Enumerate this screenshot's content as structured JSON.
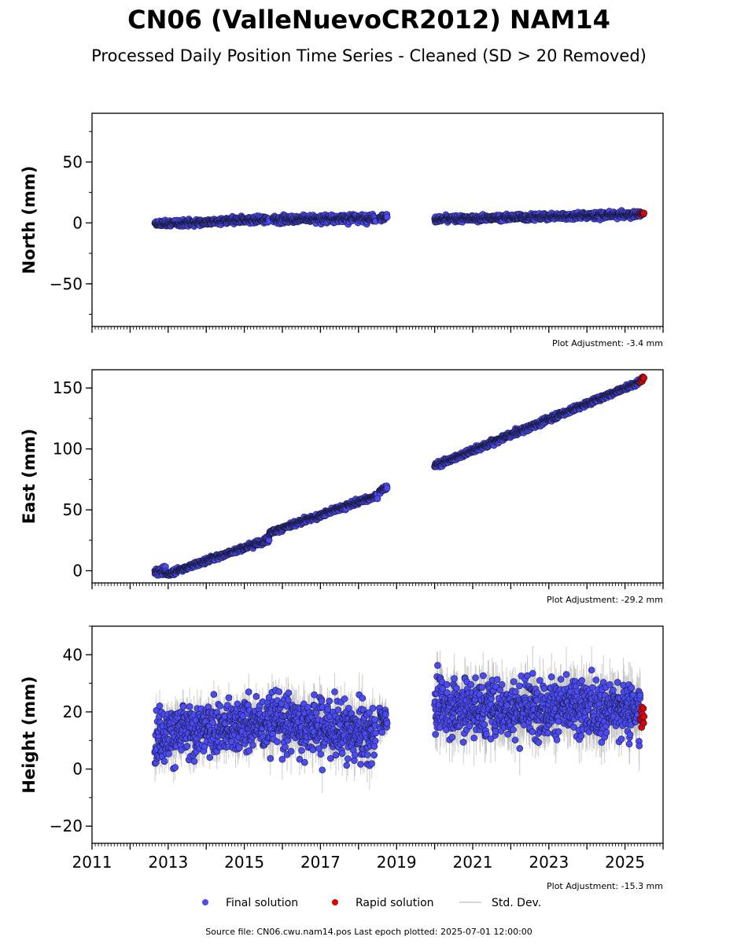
{
  "figure": {
    "title": "CN06 (ValleNuevoCR2012) NAM14",
    "subtitle": "Processed Daily Position Time Series - Cleaned (SD > 20 Removed)",
    "footer": "Source file: CN06.cwu.nam14.pos  Last epoch plotted: 2025-07-01 12:00:00"
  },
  "legend": {
    "final_label": "Final solution",
    "rapid_label": "Rapid solution",
    "std_label": "Std. Dev."
  },
  "colors": {
    "final": "#4b4bf5",
    "final_edge": "#1a1a40",
    "rapid": "#e00000",
    "std": "#b8b8b8"
  },
  "chart_data": [
    {
      "type": "scatter",
      "ylabel": "North (mm)",
      "xlim": [
        2011,
        2026
      ],
      "ylim": [
        -85,
        90
      ],
      "yticks": [
        -50,
        0,
        50
      ],
      "adjustment": "Plot Adjustment: -3.4 mm",
      "series": [
        {
          "name": "Final solution",
          "segments": [
            {
              "x0": 2012.65,
              "x1": 2015.65,
              "y0": -1,
              "y1": 3,
              "noise": 1.8,
              "sd": 2.0
            },
            {
              "x0": 2015.75,
              "x1": 2018.45,
              "y0": 3,
              "y1": 4,
              "noise": 2.2,
              "sd": 2.0
            },
            {
              "x0": 2018.55,
              "x1": 2018.75,
              "y0": 4,
              "y1": 5,
              "noise": 2.0,
              "sd": 2.0
            },
            {
              "x0": 2020.0,
              "x1": 2025.4,
              "y0": 3,
              "y1": 7,
              "noise": 1.8,
              "sd": 2.0
            }
          ]
        },
        {
          "name": "Rapid solution",
          "segments": [
            {
              "x0": 2025.4,
              "x1": 2025.5,
              "y0": 7,
              "y1": 8,
              "noise": 1.0,
              "sd": 1.0
            }
          ]
        }
      ]
    },
    {
      "type": "scatter",
      "ylabel": "East (mm)",
      "xlim": [
        2011,
        2026
      ],
      "ylim": [
        -10,
        165
      ],
      "yticks": [
        0,
        50,
        100,
        150
      ],
      "adjustment": "Plot Adjustment: -29.2 mm",
      "series": [
        {
          "name": "Final solution",
          "segments": [
            {
              "x0": 2012.65,
              "x1": 2012.95,
              "y0": 0,
              "y1": -1,
              "noise": 2.5,
              "sd": 2.0
            },
            {
              "x0": 2012.95,
              "x1": 2015.65,
              "y0": -3,
              "y1": 26,
              "noise": 1.5,
              "sd": 2.0
            },
            {
              "x0": 2015.65,
              "x1": 2018.5,
              "y0": 31,
              "y1": 62,
              "noise": 1.5,
              "sd": 2.0
            },
            {
              "x0": 2018.55,
              "x1": 2018.75,
              "y0": 65,
              "y1": 69,
              "noise": 1.5,
              "sd": 2.0
            },
            {
              "x0": 2020.0,
              "x1": 2025.4,
              "y0": 86,
              "y1": 155,
              "noise": 1.5,
              "sd": 2.0
            }
          ]
        },
        {
          "name": "Rapid solution",
          "segments": [
            {
              "x0": 2025.4,
              "x1": 2025.5,
              "y0": 156,
              "y1": 159,
              "noise": 1.2,
              "sd": 1.0
            }
          ]
        }
      ]
    },
    {
      "type": "scatter",
      "ylabel": "Height (mm)",
      "xlim": [
        2011,
        2026
      ],
      "ylim": [
        -26,
        50
      ],
      "yticks": [
        -20,
        0,
        20,
        40
      ],
      "xticks": [
        2011,
        2013,
        2015,
        2017,
        2019,
        2021,
        2023,
        2025
      ],
      "adjustment": "Plot Adjustment: -15.3 mm",
      "series": [
        {
          "name": "Final solution",
          "segments": [
            {
              "x0": 2012.65,
              "x1": 2015.65,
              "y0": 12,
              "y1": 16,
              "noise": 6.5,
              "sd": 5.0
            },
            {
              "x0": 2015.65,
              "x1": 2018.45,
              "y0": 17,
              "y1": 12,
              "noise": 7.0,
              "sd": 6.0
            },
            {
              "x0": 2018.55,
              "x1": 2018.75,
              "y0": 18,
              "y1": 18,
              "noise": 4.0,
              "sd": 4.0
            },
            {
              "x0": 2020.0,
              "x1": 2025.4,
              "y0": 22,
              "y1": 21,
              "noise": 7.0,
              "sd": 7.0
            }
          ]
        },
        {
          "name": "Rapid solution",
          "segments": [
            {
              "x0": 2025.4,
              "x1": 2025.5,
              "y0": 17,
              "y1": 17,
              "noise": 5.0,
              "sd": 2.0
            }
          ]
        }
      ]
    }
  ]
}
